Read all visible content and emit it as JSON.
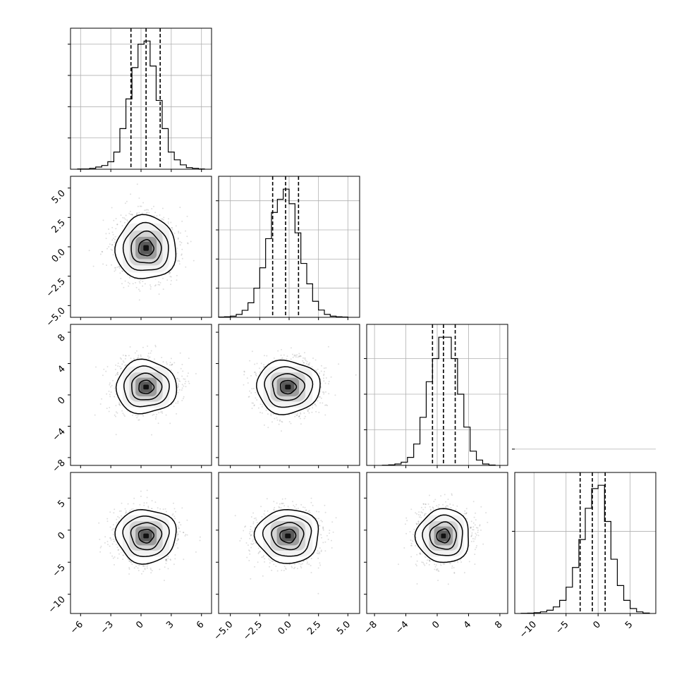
{
  "chart_data": {
    "type": "corner",
    "title": "",
    "parameters": [
      "",
      "",
      "",
      ""
    ],
    "grid": true,
    "quantile_lines": "dashed",
    "axis_ranges": [
      [
        -7,
        7
      ],
      [
        -6,
        6
      ],
      [
        -9,
        9
      ],
      [
        -13,
        9
      ]
    ],
    "bottom_ticks": [
      {
        "values": [
          -6,
          -3,
          0,
          3,
          6
        ],
        "labels": [
          "−6",
          "−3",
          "0",
          "3",
          "6"
        ]
      },
      {
        "values": [
          -5,
          -2.5,
          0,
          2.5,
          5
        ],
        "labels": [
          "−5.0",
          "−2.5",
          "0.0",
          "2.5",
          "5.0"
        ]
      },
      {
        "values": [
          -8,
          -4,
          0,
          4,
          8
        ],
        "labels": [
          "−8",
          "−4",
          "0",
          "4",
          "8"
        ]
      },
      {
        "values": [
          -10,
          -5,
          0,
          5
        ],
        "labels": [
          "−10",
          "−5",
          "0",
          "5"
        ]
      }
    ],
    "left_ticks": [
      null,
      {
        "values": [
          5,
          2.5,
          0,
          -2.5,
          -5
        ],
        "labels": [
          "5.0",
          "2.5",
          "0.0",
          "−2.5",
          "−5.0"
        ]
      },
      {
        "values": [
          8,
          4,
          0,
          -4,
          -8
        ],
        "labels": [
          "8",
          "4",
          "0",
          "−4",
          "−8"
        ]
      },
      {
        "values": [
          5,
          0,
          -5,
          -10
        ],
        "labels": [
          "5",
          "0",
          "−5",
          "−10"
        ]
      }
    ],
    "marginals": [
      {
        "quantiles": [
          -1.0,
          0.5,
          1.9
        ],
        "bin_edges": [
          -6.3,
          -5.7,
          -5.1,
          -4.5,
          -3.9,
          -3.3,
          -2.7,
          -2.1,
          -1.5,
          -0.9,
          -0.3,
          0.3,
          0.9,
          1.5,
          2.1,
          2.7,
          3.3,
          3.9,
          4.5,
          5.1,
          5.7,
          6.3
        ],
        "counts": [
          1,
          1,
          3,
          7,
          12,
          24,
          55,
          130,
          225,
          325,
          400,
          410,
          330,
          220,
          130,
          55,
          30,
          14,
          5,
          3,
          1
        ],
        "yticks": [
          100,
          200,
          300,
          400
        ]
      },
      {
        "quantiles": [
          -1.4,
          -0.3,
          0.8
        ],
        "bin_edges": [
          -6.0,
          -5.5,
          -5.0,
          -4.5,
          -4.0,
          -3.5,
          -3.0,
          -2.5,
          -2.0,
          -1.5,
          -1.0,
          -0.5,
          0.0,
          0.5,
          1.0,
          1.5,
          2.0,
          2.5,
          3.0,
          3.5,
          4.0,
          4.5,
          5.0
        ],
        "counts": [
          1,
          2,
          4,
          10,
          24,
          50,
          100,
          170,
          270,
          360,
          405,
          440,
          390,
          290,
          185,
          115,
          55,
          25,
          10,
          4,
          2,
          1
        ],
        "yticks": [
          100,
          200,
          300,
          400
        ]
      },
      {
        "quantiles": [
          -0.6,
          0.8,
          2.3
        ],
        "bin_edges": [
          -7.0,
          -6.2,
          -5.4,
          -4.6,
          -3.8,
          -3.0,
          -2.2,
          -1.4,
          -0.6,
          0.2,
          1.0,
          1.8,
          2.6,
          3.4,
          4.2,
          5.0,
          5.8,
          6.6,
          7.4
        ],
        "counts": [
          1,
          3,
          8,
          18,
          45,
          120,
          270,
          470,
          600,
          720,
          720,
          600,
          400,
          215,
          80,
          30,
          8,
          2
        ],
        "yticks": [
          200,
          400,
          600
        ]
      },
      {
        "quantiles": [
          -2.8,
          -0.9,
          1.1
        ],
        "bin_edges": [
          -12,
          -11,
          -10,
          -9,
          -8,
          -7,
          -6,
          -5,
          -4,
          -3,
          -2,
          -1,
          0,
          1,
          2,
          3,
          4,
          5,
          6,
          7,
          8
        ],
        "counts": [
          1,
          2,
          5,
          10,
          20,
          40,
          80,
          160,
          280,
          450,
          640,
          760,
          780,
          560,
          330,
          170,
          80,
          30,
          10,
          3
        ],
        "yticks": [
          500,
          1000
        ]
      }
    ],
    "pairs": [
      {
        "row": 1,
        "col": 0,
        "center": [
          0.5,
          -0.1
        ],
        "sigma": [
          1.5,
          1.35
        ]
      },
      {
        "row": 2,
        "col": 0,
        "center": [
          0.5,
          1.0
        ],
        "sigma": [
          1.5,
          1.7
        ]
      },
      {
        "row": 2,
        "col": 1,
        "center": [
          -0.1,
          1.0
        ],
        "sigma": [
          1.35,
          1.7
        ]
      },
      {
        "row": 3,
        "col": 0,
        "center": [
          0.5,
          -0.9
        ],
        "sigma": [
          1.5,
          2.1
        ]
      },
      {
        "row": 3,
        "col": 1,
        "center": [
          -0.1,
          -0.9
        ],
        "sigma": [
          1.35,
          2.1
        ]
      },
      {
        "row": 3,
        "col": 2,
        "center": [
          0.8,
          -0.9
        ],
        "sigma": [
          1.7,
          2.1
        ]
      }
    ],
    "contour_levels_sigma": [
      0.5,
      1.0,
      1.5,
      2.0
    ]
  }
}
